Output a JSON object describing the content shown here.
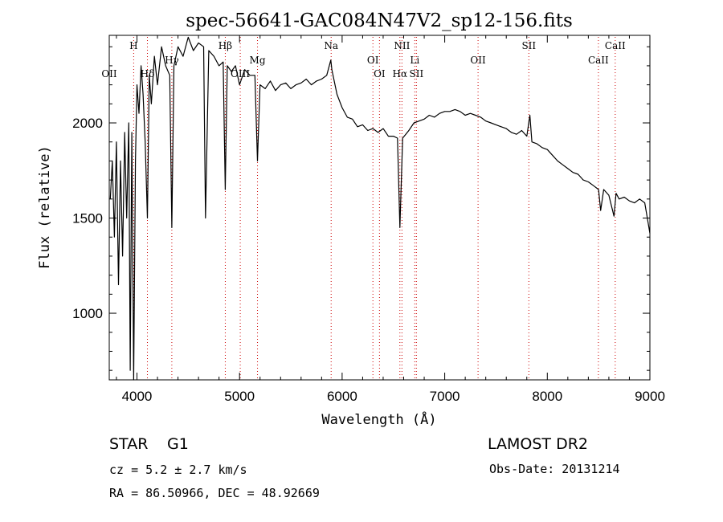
{
  "chart_data": {
    "type": "line",
    "title": "spec-56641-GAC084N47V2_sp12-156.fits",
    "xlabel": "Wavelength (Å)",
    "ylabel": "Flux (relative)",
    "xlim": [
      3730,
      9000
    ],
    "ylim": [
      650,
      2460
    ],
    "xticks": [
      4000,
      5000,
      6000,
      7000,
      8000,
      9000
    ],
    "yticks": [
      1000,
      1500,
      2000
    ],
    "grid": false,
    "line_color": "#000000",
    "marker_color": "#cc0000",
    "spectral_lines": [
      {
        "label": "OII",
        "wavelength": 3727,
        "row": 3
      },
      {
        "label": "H",
        "wavelength": 3968,
        "row": 1
      },
      {
        "label": "Hδ",
        "wavelength": 4102,
        "row": 3
      },
      {
        "label": "Hγ",
        "wavelength": 4340,
        "row": 2
      },
      {
        "label": "Hβ",
        "wavelength": 4861,
        "row": 1
      },
      {
        "label": "OIII",
        "wavelength": 5007,
        "row": 3
      },
      {
        "label": "Mg",
        "wavelength": 5175,
        "row": 2
      },
      {
        "label": "Na",
        "wavelength": 5893,
        "row": 1
      },
      {
        "label": "OI",
        "wavelength": 6300,
        "row": 2
      },
      {
        "label": "OI",
        "wavelength": 6364,
        "row": 3
      },
      {
        "label": "NII",
        "wavelength": 6583,
        "row": 1
      },
      {
        "label": "Hα",
        "wavelength": 6563,
        "row": 3
      },
      {
        "label": "Li",
        "wavelength": 6708,
        "row": 2
      },
      {
        "label": "SII",
        "wavelength": 6724,
        "row": 3
      },
      {
        "label": "OII",
        "wavelength": 7325,
        "row": 2
      },
      {
        "label": "SII",
        "wavelength": 7820,
        "row": 1
      },
      {
        "label": "CaII",
        "wavelength": 8498,
        "row": 2
      },
      {
        "label": "CaII",
        "wavelength": 8662,
        "row": 1
      }
    ],
    "series": [
      {
        "x": [
          3740,
          3760,
          3780,
          3800,
          3820,
          3840,
          3860,
          3880,
          3900,
          3920,
          3934,
          3950,
          3968,
          3985,
          4000,
          4020,
          4040,
          4060,
          4080,
          4102,
          4120,
          4140,
          4170,
          4200,
          4240,
          4280,
          4320,
          4340,
          4360,
          4400,
          4450,
          4500,
          4550,
          4600,
          4650,
          4668,
          4700,
          4750,
          4800,
          4840,
          4861,
          4880,
          4920,
          4960,
          5000,
          5050,
          5100,
          5150,
          5175,
          5200,
          5250,
          5300,
          5350,
          5400,
          5450,
          5500,
          5550,
          5600,
          5650,
          5700,
          5750,
          5800,
          5850,
          5890,
          5900,
          5950,
          6000,
          6050,
          6100,
          6150,
          6200,
          6250,
          6300,
          6350,
          6400,
          6450,
          6500,
          6540,
          6563,
          6590,
          6620,
          6650,
          6700,
          6750,
          6800,
          6850,
          6900,
          6950,
          7000,
          7050,
          7100,
          7150,
          7200,
          7250,
          7300,
          7350,
          7400,
          7450,
          7500,
          7550,
          7600,
          7650,
          7700,
          7750,
          7800,
          7830,
          7850,
          7900,
          7950,
          8000,
          8050,
          8100,
          8150,
          8200,
          8250,
          8300,
          8350,
          8400,
          8450,
          8500,
          8520,
          8550,
          8600,
          8650,
          8670,
          8700,
          8750,
          8800,
          8850,
          8900,
          8950,
          9000
        ],
        "y": [
          1600,
          1800,
          1400,
          1900,
          1150,
          1800,
          1300,
          1950,
          1500,
          2000,
          700,
          1950,
          650,
          1800,
          2200,
          2050,
          2300,
          2150,
          1900,
          1500,
          2250,
          2100,
          2350,
          2200,
          2400,
          2300,
          2250,
          1450,
          2300,
          2400,
          2350,
          2450,
          2380,
          2420,
          2400,
          1500,
          2380,
          2350,
          2300,
          2320,
          1650,
          2300,
          2270,
          2300,
          2200,
          2280,
          2250,
          2250,
          1800,
          2200,
          2180,
          2220,
          2170,
          2200,
          2210,
          2180,
          2200,
          2210,
          2230,
          2200,
          2220,
          2230,
          2250,
          2330,
          2280,
          2150,
          2080,
          2030,
          2020,
          1980,
          1990,
          1960,
          1970,
          1950,
          1970,
          1930,
          1930,
          1920,
          1450,
          1920,
          1940,
          1960,
          2000,
          2010,
          2020,
          2040,
          2030,
          2050,
          2060,
          2060,
          2070,
          2060,
          2040,
          2050,
          2040,
          2030,
          2010,
          2000,
          1990,
          1980,
          1970,
          1950,
          1940,
          1960,
          1930,
          2040,
          1900,
          1890,
          1870,
          1860,
          1830,
          1800,
          1780,
          1760,
          1740,
          1730,
          1700,
          1690,
          1670,
          1650,
          1540,
          1650,
          1620,
          1510,
          1630,
          1600,
          1610,
          1590,
          1580,
          1600,
          1580,
          1420
        ]
      }
    ]
  },
  "info": {
    "object_class": "STAR",
    "subclass": "G1",
    "survey": "LAMOST DR2",
    "redshift": "cz =  5.2 ± 2.7 km/s",
    "obs_date": "Obs-Date: 20131214",
    "coords": "RA =   86.50966, DEC =   48.92669"
  }
}
